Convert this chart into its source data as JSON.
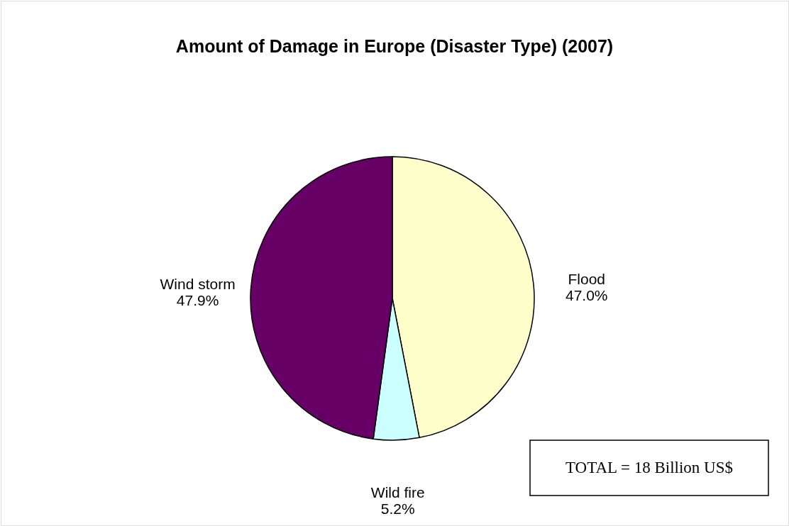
{
  "chart_data": {
    "type": "pie",
    "title": "Amount of Damage in Europe (Disaster Type) (2007)",
    "categories": [
      "Flood",
      "Wild fire",
      "Wind storm"
    ],
    "values": [
      47.0,
      5.2,
      47.9
    ],
    "colors": [
      "#ffffcc",
      "#ccffff",
      "#660066"
    ],
    "value_labels": [
      "47.0%",
      "5.2%",
      "47.9%"
    ],
    "annotations": [
      "TOTAL =  18 Billion US$"
    ]
  }
}
